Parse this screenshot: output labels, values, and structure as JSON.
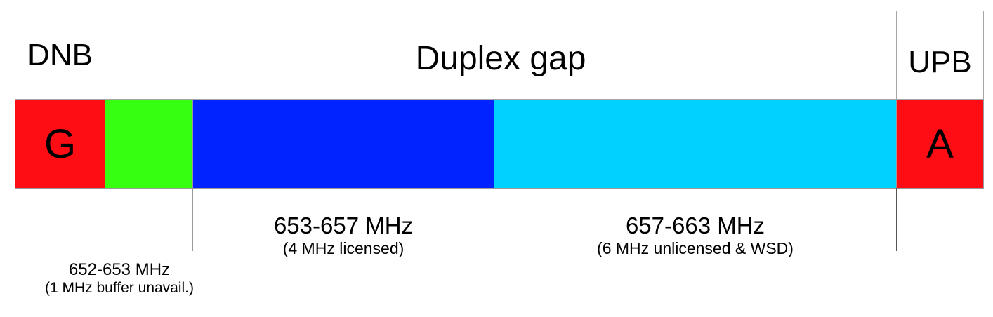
{
  "header": {
    "left": "DNB",
    "center": "Duplex gap",
    "right": "UPB"
  },
  "bands": [
    {
      "id": "guard",
      "letter": "G",
      "color": "#ff0d14"
    },
    {
      "id": "buffer",
      "letter": "",
      "color": "#36ff11"
    },
    {
      "id": "licensed",
      "letter": "",
      "color": "#0123ff"
    },
    {
      "id": "unlicensed",
      "letter": "",
      "color": "#00d1ff"
    },
    {
      "id": "uplink-edge",
      "letter": "A",
      "color": "#ff0d14"
    }
  ],
  "labels": {
    "buffer": {
      "range": "652-653 MHz",
      "note": "(1 MHz buffer unavail.)"
    },
    "licensed": {
      "range": "653-657 MHz",
      "note": "(4 MHz licensed)"
    },
    "unlicensed": {
      "range": "657-663 MHz",
      "note": "(6 MHz unlicensed & WSD)"
    }
  }
}
